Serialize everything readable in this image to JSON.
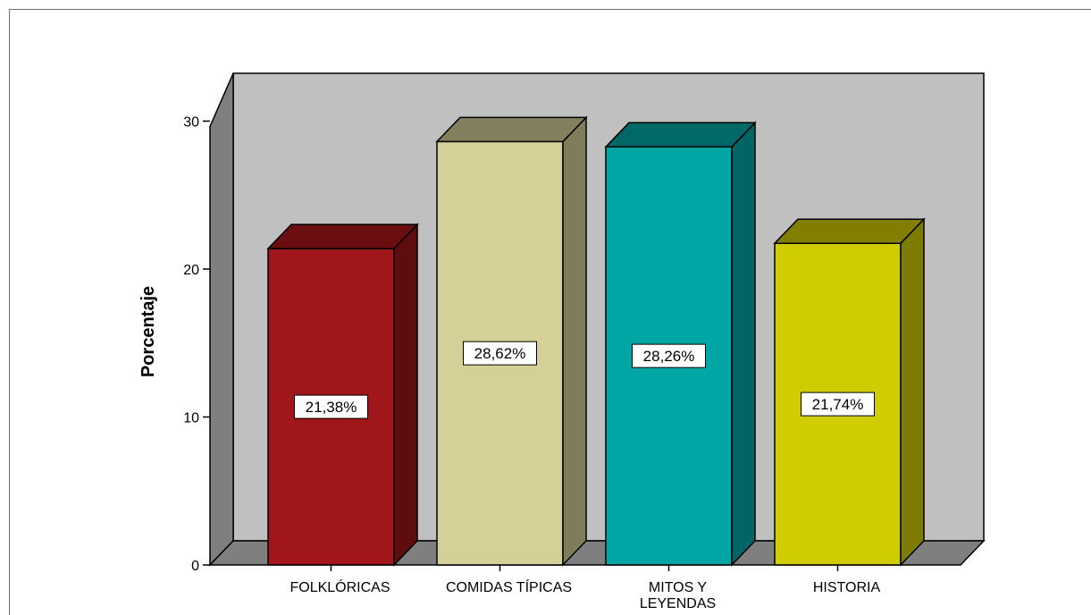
{
  "chart_data": {
    "type": "bar",
    "categories": [
      "FOLKLÓRICAS",
      "COMIDAS TÍPICAS",
      "MITOS Y LEYENDAS",
      "HISTORIA"
    ],
    "category_lines": [
      [
        "FOLKLÓRICAS"
      ],
      [
        "COMIDAS TÍPICAS"
      ],
      [
        "MITOS Y",
        "LEYENDAS"
      ],
      [
        "HISTORIA"
      ]
    ],
    "values": [
      21.38,
      28.62,
      28.26,
      21.74
    ],
    "data_labels": [
      "21,38%",
      "28,62%",
      "28,26%",
      "21,74%"
    ],
    "colors": [
      {
        "front": "#a0161a",
        "side": "#5f0c0f",
        "top": "#6b0e12"
      },
      {
        "front": "#d5cf98",
        "side": "#7f7c59",
        "top": "#82805f"
      },
      {
        "front": "#00a6a4",
        "side": "#006564",
        "top": "#006968"
      },
      {
        "front": "#cfcd00",
        "side": "#7d7b00",
        "top": "#827f00"
      }
    ],
    "title": "",
    "xlabel": "",
    "ylabel": "Porcentaje",
    "ylim": [
      0,
      30
    ],
    "yticks": [
      0,
      10,
      20,
      30
    ],
    "ytick_labels": [
      "0",
      "10",
      "20",
      "30"
    ],
    "style": "3d",
    "back_wall_color": "#c0c0c0",
    "side_wall_color": "#7f7f7f",
    "floor_color": "#7f7f7f",
    "grid": false,
    "legend": "none"
  }
}
